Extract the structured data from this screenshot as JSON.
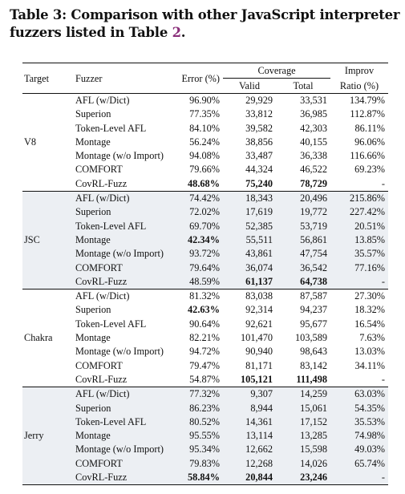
{
  "caption": {
    "prefix": "Table 3: Comparison with other JavaScript interpreter fuzzers listed in Table ",
    "ref": "2",
    "suffix": "."
  },
  "headers": {
    "target": "Target",
    "fuzzer": "Fuzzer",
    "error": "Error (%)",
    "coverage": "Coverage",
    "valid": "Valid",
    "total": "Total",
    "improv1": "Improv",
    "improv2": "Ratio (%)"
  },
  "groups": [
    {
      "target": "V8",
      "rows": [
        {
          "fuzzer": "AFL (w/Dict)",
          "error": "96.90%",
          "valid": "29,929",
          "total": "33,531",
          "improv": "134.79%"
        },
        {
          "fuzzer": "Superion",
          "error": "77.35%",
          "valid": "33,812",
          "total": "36,985",
          "improv": "112.87%"
        },
        {
          "fuzzer": "Token-Level AFL",
          "error": "84.10%",
          "valid": "39,582",
          "total": "42,303",
          "improv": "86.11%"
        },
        {
          "fuzzer": "Montage",
          "error": "56.24%",
          "valid": "38,856",
          "total": "40,155",
          "improv": "96.06%"
        },
        {
          "fuzzer": "Montage (w/o Import)",
          "error": "94.08%",
          "valid": "33,487",
          "total": "36,338",
          "improv": "116.66%"
        },
        {
          "fuzzer": "COMFORT",
          "error": "79.66%",
          "valid": "44,324",
          "total": "46,522",
          "improv": "69.23%"
        },
        {
          "fuzzer": "CovRL-Fuzz",
          "error": "48.68%",
          "valid": "75,240",
          "total": "78,729",
          "improv": "-"
        }
      ]
    },
    {
      "target": "JSC",
      "rows": [
        {
          "fuzzer": "AFL (w/Dict)",
          "error": "74.42%",
          "valid": "18,343",
          "total": "20,496",
          "improv": "215.86%"
        },
        {
          "fuzzer": "Superion",
          "error": "72.02%",
          "valid": "17,619",
          "total": "19,772",
          "improv": "227.42%"
        },
        {
          "fuzzer": "Token-Level AFL",
          "error": "69.70%",
          "valid": "52,385",
          "total": "53,719",
          "improv": "20.51%"
        },
        {
          "fuzzer": "Montage",
          "error": "42.34%",
          "valid": "55,511",
          "total": "56,861",
          "improv": "13.85%"
        },
        {
          "fuzzer": "Montage (w/o Import)",
          "error": "93.72%",
          "valid": "43,861",
          "total": "47,754",
          "improv": "35.57%"
        },
        {
          "fuzzer": "COMFORT",
          "error": "79.64%",
          "valid": "36,074",
          "total": "36,542",
          "improv": "77.16%"
        },
        {
          "fuzzer": "CovRL-Fuzz",
          "error": "48.59%",
          "valid": "61,137",
          "total": "64,738",
          "improv": "-"
        }
      ]
    },
    {
      "target": "Chakra",
      "rows": [
        {
          "fuzzer": "AFL (w/Dict)",
          "error": "81.32%",
          "valid": "83,038",
          "total": "87,587",
          "improv": "27.30%"
        },
        {
          "fuzzer": "Superion",
          "error": "42.63%",
          "valid": "92,314",
          "total": "94,237",
          "improv": "18.32%"
        },
        {
          "fuzzer": "Token-Level AFL",
          "error": "90.64%",
          "valid": "92,621",
          "total": "95,677",
          "improv": "16.54%"
        },
        {
          "fuzzer": "Montage",
          "error": "82.21%",
          "valid": "101,470",
          "total": "103,589",
          "improv": "7.63%"
        },
        {
          "fuzzer": "Montage (w/o Import)",
          "error": "94.72%",
          "valid": "90,940",
          "total": "98,643",
          "improv": "13.03%"
        },
        {
          "fuzzer": "COMFORT",
          "error": "79.47%",
          "valid": "81,171",
          "total": "83,142",
          "improv": "34.11%"
        },
        {
          "fuzzer": "CovRL-Fuzz",
          "error": "54.87%",
          "valid": "105,121",
          "total": "111,498",
          "improv": "-"
        }
      ]
    },
    {
      "target": "Jerry",
      "rows": [
        {
          "fuzzer": "AFL (w/Dict)",
          "error": "77.32%",
          "valid": "9,307",
          "total": "14,259",
          "improv": "63.03%"
        },
        {
          "fuzzer": "Superion",
          "error": "86.23%",
          "valid": "8,944",
          "total": "15,061",
          "improv": "54.35%"
        },
        {
          "fuzzer": "Token-Level AFL",
          "error": "80.52%",
          "valid": "14,361",
          "total": "17,152",
          "improv": "35.53%"
        },
        {
          "fuzzer": "Montage",
          "error": "95.55%",
          "valid": "13,114",
          "total": "13,285",
          "improv": "74.98%"
        },
        {
          "fuzzer": "Montage (w/o Import)",
          "error": "95.34%",
          "valid": "12,662",
          "total": "15,598",
          "improv": "49.03%"
        },
        {
          "fuzzer": "COMFORT",
          "error": "79.83%",
          "valid": "12,268",
          "total": "14,026",
          "improv": "65.74%"
        },
        {
          "fuzzer": "CovRL-Fuzz",
          "error": "58.84%",
          "valid": "20,844",
          "total": "23,246",
          "improv": "-"
        }
      ]
    }
  ],
  "bold_cells": [
    "0.6.error",
    "0.6.valid",
    "0.6.total",
    "1.3.error",
    "1.6.valid",
    "1.6.total",
    "2.1.error",
    "2.6.valid",
    "2.6.total",
    "3.6.error",
    "3.6.valid",
    "3.6.total"
  ],
  "colors": {
    "shaded_group_bg": "#eceff3",
    "table_ref": "#8a2f7a"
  }
}
